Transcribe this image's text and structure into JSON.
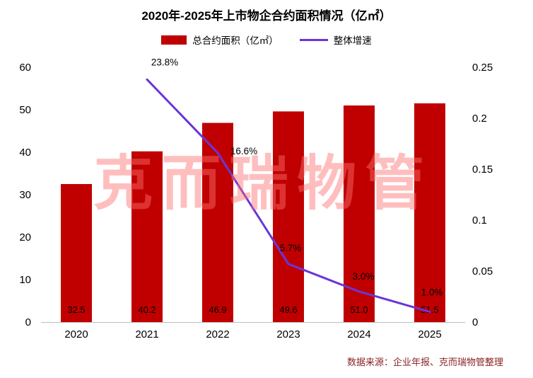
{
  "watermark": "克而瑞物管",
  "source": "数据来源：企业年报、克而瑞物管整理",
  "colors": {
    "bar": "#C00000",
    "line": "#6A35D8",
    "watermark": "rgba(255,110,110,0.45)",
    "source": "#8B2222",
    "axis": "#BFBFBF",
    "text": "#000000"
  },
  "chart_data": {
    "type": "bar",
    "subtype": "bar+line combo, dual axis",
    "title": "2020年-2025年上市物企合约面积情况（亿㎡）",
    "categories": [
      "2020",
      "2021",
      "2022",
      "2023",
      "2024",
      "2025"
    ],
    "series": [
      {
        "name": "总合约面积（亿㎡）",
        "type": "bar",
        "axis": "left",
        "values": [
          32.5,
          40.2,
          46.9,
          49.6,
          51.0,
          51.5
        ],
        "labels": [
          "32.5",
          "40.2",
          "46.9",
          "49.6",
          "51.0",
          "51.5"
        ]
      },
      {
        "name": "整体增速",
        "type": "line",
        "axis": "right",
        "values": [
          null,
          0.238,
          0.166,
          0.057,
          0.03,
          0.01
        ],
        "labels": [
          "",
          "23.8%",
          "16.6%",
          "5.7%",
          "3.0%",
          "1.0%"
        ]
      }
    ],
    "left_axis": {
      "min": 0,
      "max": 60,
      "ticks": [
        0,
        10,
        20,
        30,
        40,
        50,
        60
      ]
    },
    "right_axis": {
      "min": 0,
      "max": 0.25,
      "ticks": [
        0,
        0.05,
        0.1,
        0.15,
        0.2,
        0.25
      ],
      "tick_labels": [
        "0",
        "0.05",
        "0.1",
        "0.15",
        "0.2",
        "0.25"
      ]
    },
    "grid": false,
    "legend_position": "top"
  }
}
